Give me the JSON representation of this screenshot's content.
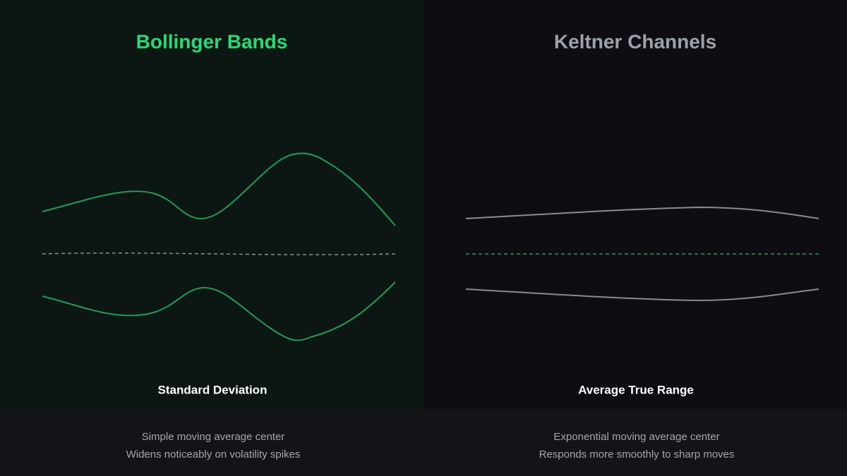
{
  "panels": [
    {
      "title": "Bollinger Bands",
      "measure": "Standard Deviation",
      "notes": [
        "Simple moving average center",
        "Widens noticeably on volatility spikes"
      ]
    },
    {
      "title": "Keltner Channels",
      "measure": "Average True Range",
      "notes": [
        "Exponential moving average center",
        "Responds more smoothly to sharp moves"
      ]
    }
  ]
}
